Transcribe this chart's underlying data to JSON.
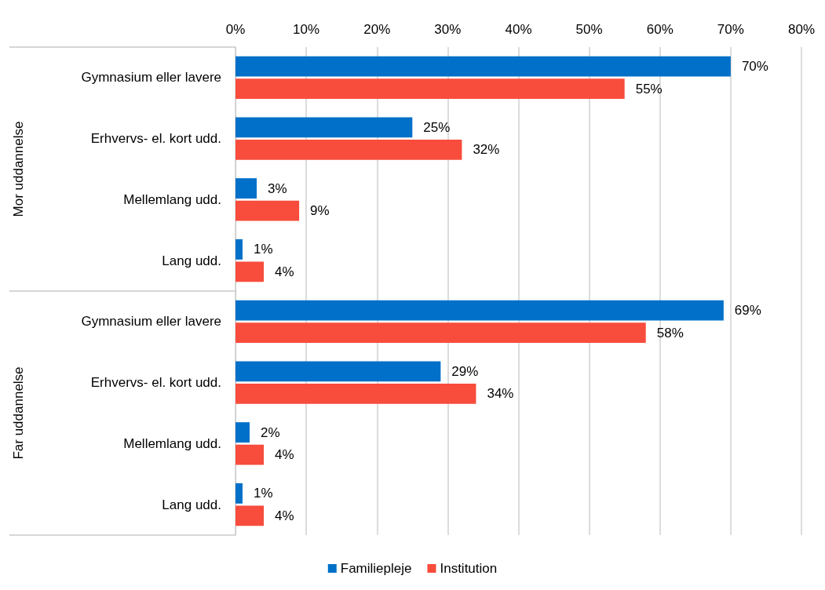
{
  "chart_data": {
    "type": "bar",
    "orientation": "horizontal",
    "categories": [
      "Gymnasium eller lavere",
      "Erhvervs- el. kort udd.",
      "Mellemlang udd.",
      "Lang udd.",
      "Gymnasium eller lavere",
      "Erhvervs- el. kort udd.",
      "Mellemlang udd.",
      "Lang udd."
    ],
    "series": [
      {
        "name": "Familiepleje",
        "color": "#0070c8",
        "values": [
          70,
          25,
          3,
          1,
          69,
          29,
          2,
          1
        ],
        "value_labels": [
          "70%",
          "25%",
          "3%",
          "1%",
          "69%",
          "29%",
          "2%",
          "1%"
        ]
      },
      {
        "name": "Institution",
        "color": "#f84c3c",
        "values": [
          55,
          32,
          9,
          4,
          58,
          34,
          4,
          4
        ],
        "value_labels": [
          "55%",
          "32%",
          "9%",
          "4%",
          "58%",
          "34%",
          "4%",
          "4%"
        ]
      }
    ],
    "annotations": [
      "Mor uddannelse",
      "Far uddannelse"
    ],
    "xlim": [
      0,
      80
    ],
    "xticks": [
      {
        "value": 0,
        "label": "0%"
      },
      {
        "value": 10,
        "label": "10%"
      },
      {
        "value": 20,
        "label": "20%"
      },
      {
        "value": 30,
        "label": "30%"
      },
      {
        "value": 40,
        "label": "40%"
      },
      {
        "value": 50,
        "label": "50%"
      },
      {
        "value": 60,
        "label": "60%"
      },
      {
        "value": 70,
        "label": "70%"
      },
      {
        "value": 80,
        "label": "80%"
      }
    ],
    "grid": "x",
    "legend": "bottom"
  }
}
